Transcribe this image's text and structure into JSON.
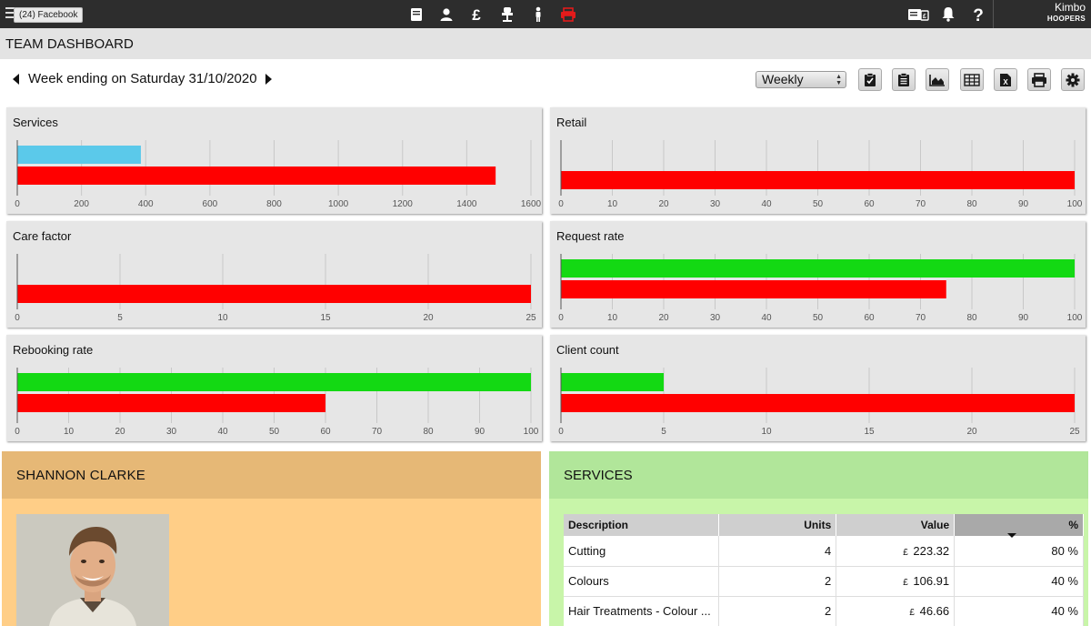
{
  "topbar": {
    "tooltip": "(24) Facebook",
    "icons": [
      "book-icon",
      "person-icon",
      "pound-icon",
      "chair-icon",
      "staff-icon",
      "print-icon"
    ],
    "right_icons": [
      "report-icon",
      "bell-icon",
      "help-icon"
    ],
    "user_name": "Kimbo",
    "salon_name": "HOOPERS",
    "print_color": "#e31b1b"
  },
  "page": {
    "title": "TEAM DASHBOARD",
    "week_label": "Week ending on Saturday 31/10/2020",
    "period_select": "Weekly",
    "tools": [
      "clipboard-check-icon",
      "clipboard-icon",
      "area-chart-icon",
      "table-icon",
      "excel-icon",
      "print-icon",
      "gear-icon"
    ]
  },
  "colors": {
    "actual": "#ff0000",
    "target_green": "#13d913",
    "previous_blue": "#5bc9ea"
  },
  "chart_data": [
    {
      "type": "bar",
      "title": "Services",
      "ticks": [
        "0",
        "200",
        "400",
        "600",
        "800",
        "1000",
        "1200",
        "1400",
        "1600"
      ],
      "xlim": [
        0,
        1600
      ],
      "series": [
        {
          "values": [
            385
          ],
          "color": "#5bc9ea"
        },
        {
          "values": [
            1490
          ],
          "color": "#ff0000"
        }
      ]
    },
    {
      "type": "bar",
      "title": "Retail",
      "ticks": [
        "0",
        "10",
        "20",
        "30",
        "40",
        "50",
        "60",
        "70",
        "80",
        "90",
        "100"
      ],
      "xlim": [
        0,
        100
      ],
      "series": [
        {
          "values": [
            100
          ],
          "color": "#ff0000"
        }
      ]
    },
    {
      "type": "bar",
      "title": "Care factor",
      "ticks": [
        "0",
        "5",
        "10",
        "15",
        "20",
        "25"
      ],
      "xlim": [
        0,
        25
      ],
      "series": [
        {
          "values": [
            25
          ],
          "color": "#ff0000"
        }
      ]
    },
    {
      "type": "bar",
      "title": "Request rate",
      "ticks": [
        "0",
        "10",
        "20",
        "30",
        "40",
        "50",
        "60",
        "70",
        "80",
        "90",
        "100"
      ],
      "xlim": [
        0,
        100
      ],
      "series": [
        {
          "values": [
            100
          ],
          "color": "#13d913"
        },
        {
          "values": [
            75
          ],
          "color": "#ff0000"
        }
      ]
    },
    {
      "type": "bar",
      "title": "Rebooking rate",
      "ticks": [
        "0",
        "10",
        "20",
        "30",
        "40",
        "50",
        "60",
        "70",
        "80",
        "90",
        "100"
      ],
      "xlim": [
        0,
        100
      ],
      "series": [
        {
          "values": [
            100
          ],
          "color": "#13d913"
        },
        {
          "values": [
            60
          ],
          "color": "#ff0000"
        }
      ]
    },
    {
      "type": "bar",
      "title": "Client count",
      "ticks": [
        "0",
        "5",
        "10",
        "15",
        "20",
        "25"
      ],
      "xlim": [
        0,
        25
      ],
      "series": [
        {
          "values": [
            5
          ],
          "color": "#13d913"
        },
        {
          "values": [
            25
          ],
          "color": "#ff0000"
        }
      ]
    }
  ],
  "profile": {
    "name": "SHANNON CLARKE"
  },
  "services": {
    "title": "SERVICES",
    "columns": [
      "Description",
      "Units",
      "Value",
      "%"
    ],
    "rows": [
      {
        "description": "Cutting",
        "units": "4",
        "currency": "£",
        "value": "223.32",
        "percent": "80 %"
      },
      {
        "description": "Colours",
        "units": "2",
        "currency": "£",
        "value": "106.91",
        "percent": "40 %"
      },
      {
        "description": "Hair Treatments - Colour ...",
        "units": "2",
        "currency": "£",
        "value": "46.66",
        "percent": "40 %"
      }
    ]
  }
}
